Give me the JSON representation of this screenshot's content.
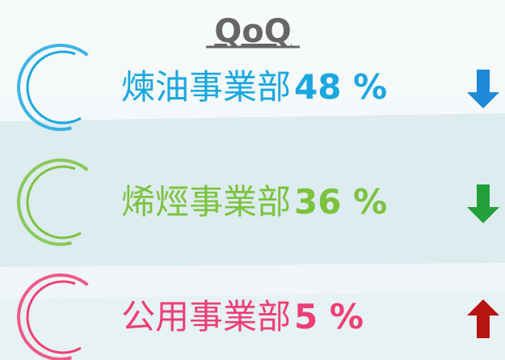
{
  "title": "QoQ",
  "items": [
    {
      "name": "煉油事業部",
      "value": "48 %",
      "direction": "down",
      "color": "#1aa7e0",
      "arrow_color": "#1c8ad6"
    },
    {
      "name": "烯烴事業部",
      "value": "36 %",
      "direction": "down",
      "color": "#7dc23f",
      "arrow_color": "#23a03a"
    },
    {
      "name": "公用事業部",
      "value": "5 %",
      "direction": "up",
      "color": "#ee3f74",
      "arrow_color": "#b5140f"
    }
  ]
}
